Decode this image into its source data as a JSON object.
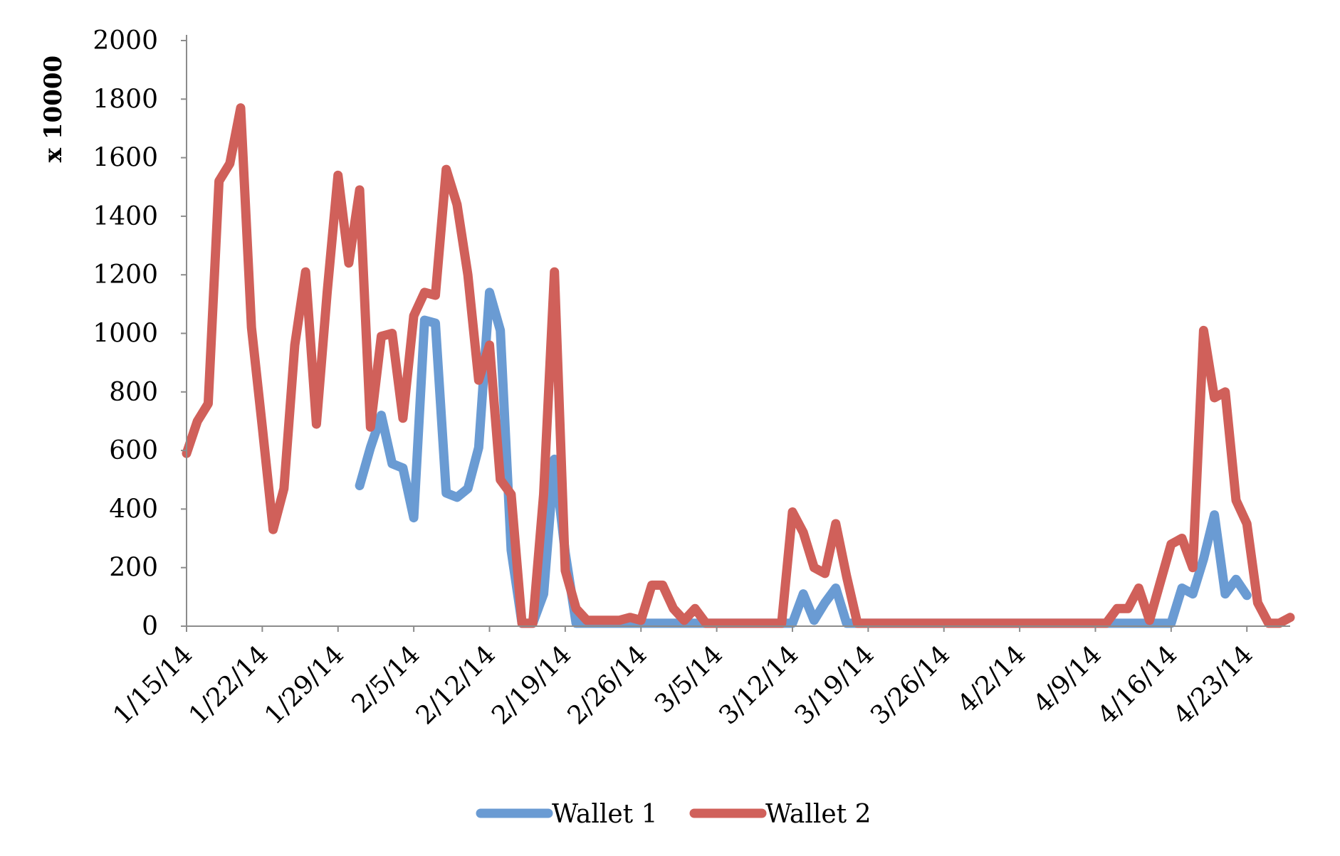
{
  "chart_data": {
    "type": "line",
    "ylabel": "x 10000",
    "ylim": [
      0,
      2000
    ],
    "yticks": [
      "0",
      "200",
      "400",
      "600",
      "800",
      "1000",
      "1200",
      "1400",
      "1600",
      "1800",
      "2000"
    ],
    "xlim": [
      "2014-01-15",
      "2014-04-27"
    ],
    "xticks": [
      "1/15/14",
      "1/22/14",
      "1/29/14",
      "2/5/14",
      "2/12/14",
      "2/19/14",
      "2/26/14",
      "3/5/14",
      "3/12/14",
      "3/19/14",
      "3/26/14",
      "4/2/14",
      "4/9/14",
      "4/16/14",
      "4/23/14"
    ],
    "grid": false,
    "legend_position": "bottom",
    "colors": {
      "wallet1": "#6a9bd3",
      "wallet2": "#d0605a"
    },
    "series": [
      {
        "name": "Wallet 1",
        "color": "#6a9bd3",
        "points": [
          [
            "2014-01-31",
            480
          ],
          [
            "2014-02-01",
            610
          ],
          [
            "2014-02-02",
            720
          ],
          [
            "2014-02-03",
            555
          ],
          [
            "2014-02-04",
            540
          ],
          [
            "2014-02-05",
            370
          ],
          [
            "2014-02-06",
            1045
          ],
          [
            "2014-02-07",
            1035
          ],
          [
            "2014-02-08",
            455
          ],
          [
            "2014-02-09",
            440
          ],
          [
            "2014-02-10",
            470
          ],
          [
            "2014-02-11",
            610
          ],
          [
            "2014-02-12",
            1140
          ],
          [
            "2014-02-13",
            1010
          ],
          [
            "2014-02-14",
            260
          ],
          [
            "2014-02-15",
            10
          ],
          [
            "2014-02-16",
            10
          ],
          [
            "2014-02-17",
            110
          ],
          [
            "2014-02-18",
            570
          ],
          [
            "2014-02-19",
            250
          ],
          [
            "2014-02-20",
            10
          ],
          [
            "2014-02-21",
            10
          ],
          [
            "2014-02-22",
            10
          ],
          [
            "2014-02-23",
            10
          ],
          [
            "2014-02-24",
            10
          ],
          [
            "2014-02-25",
            10
          ],
          [
            "2014-02-26",
            10
          ],
          [
            "2014-02-27",
            10
          ],
          [
            "2014-02-28",
            10
          ],
          [
            "2014-03-01",
            10
          ],
          [
            "2014-03-02",
            10
          ],
          [
            "2014-03-03",
            10
          ],
          [
            "2014-03-04",
            10
          ],
          [
            "2014-03-05",
            10
          ],
          [
            "2014-03-06",
            10
          ],
          [
            "2014-03-07",
            10
          ],
          [
            "2014-03-08",
            10
          ],
          [
            "2014-03-09",
            10
          ],
          [
            "2014-03-10",
            10
          ],
          [
            "2014-03-11",
            10
          ],
          [
            "2014-03-12",
            10
          ],
          [
            "2014-03-13",
            110
          ],
          [
            "2014-03-14",
            20
          ],
          [
            "2014-03-15",
            80
          ],
          [
            "2014-03-16",
            130
          ],
          [
            "2014-03-17",
            10
          ],
          [
            "2014-03-18",
            10
          ],
          [
            "2014-03-20",
            10
          ],
          [
            "2014-03-25",
            10
          ],
          [
            "2014-03-30",
            10
          ],
          [
            "2014-04-04",
            10
          ],
          [
            "2014-04-09",
            10
          ],
          [
            "2014-04-10",
            10
          ],
          [
            "2014-04-11",
            10
          ],
          [
            "2014-04-12",
            10
          ],
          [
            "2014-04-13",
            10
          ],
          [
            "2014-04-14",
            10
          ],
          [
            "2014-04-15",
            10
          ],
          [
            "2014-04-16",
            10
          ],
          [
            "2014-04-17",
            130
          ],
          [
            "2014-04-18",
            110
          ],
          [
            "2014-04-19",
            230
          ],
          [
            "2014-04-20",
            380
          ],
          [
            "2014-04-21",
            110
          ],
          [
            "2014-04-22",
            160
          ],
          [
            "2014-04-23",
            105
          ]
        ]
      },
      {
        "name": "Wallet 2",
        "color": "#d0605a",
        "points": [
          [
            "2014-01-15",
            590
          ],
          [
            "2014-01-16",
            700
          ],
          [
            "2014-01-17",
            760
          ],
          [
            "2014-01-18",
            1520
          ],
          [
            "2014-01-19",
            1580
          ],
          [
            "2014-01-20",
            1770
          ],
          [
            "2014-01-21",
            1020
          ],
          [
            "2014-01-22",
            680
          ],
          [
            "2014-01-23",
            330
          ],
          [
            "2014-01-24",
            470
          ],
          [
            "2014-01-25",
            960
          ],
          [
            "2014-01-26",
            1210
          ],
          [
            "2014-01-27",
            690
          ],
          [
            "2014-01-28",
            1140
          ],
          [
            "2014-01-29",
            1540
          ],
          [
            "2014-01-30",
            1240
          ],
          [
            "2014-01-31",
            1490
          ],
          [
            "2014-02-01",
            680
          ],
          [
            "2014-02-02",
            990
          ],
          [
            "2014-02-03",
            1000
          ],
          [
            "2014-02-04",
            710
          ],
          [
            "2014-02-05",
            1060
          ],
          [
            "2014-02-06",
            1140
          ],
          [
            "2014-02-07",
            1130
          ],
          [
            "2014-02-08",
            1560
          ],
          [
            "2014-02-09",
            1440
          ],
          [
            "2014-02-10",
            1200
          ],
          [
            "2014-02-11",
            840
          ],
          [
            "2014-02-12",
            960
          ],
          [
            "2014-02-13",
            500
          ],
          [
            "2014-02-14",
            450
          ],
          [
            "2014-02-15",
            10
          ],
          [
            "2014-02-16",
            10
          ],
          [
            "2014-02-17",
            450
          ],
          [
            "2014-02-18",
            1210
          ],
          [
            "2014-02-19",
            190
          ],
          [
            "2014-02-20",
            60
          ],
          [
            "2014-02-21",
            20
          ],
          [
            "2014-02-22",
            20
          ],
          [
            "2014-02-23",
            20
          ],
          [
            "2014-02-24",
            20
          ],
          [
            "2014-02-25",
            30
          ],
          [
            "2014-02-26",
            20
          ],
          [
            "2014-02-27",
            140
          ],
          [
            "2014-02-28",
            140
          ],
          [
            "2014-03-01",
            60
          ],
          [
            "2014-03-02",
            20
          ],
          [
            "2014-03-03",
            60
          ],
          [
            "2014-03-04",
            10
          ],
          [
            "2014-03-05",
            10
          ],
          [
            "2014-03-06",
            10
          ],
          [
            "2014-03-07",
            10
          ],
          [
            "2014-03-08",
            10
          ],
          [
            "2014-03-09",
            10
          ],
          [
            "2014-03-10",
            10
          ],
          [
            "2014-03-11",
            10
          ],
          [
            "2014-03-12",
            390
          ],
          [
            "2014-03-13",
            320
          ],
          [
            "2014-03-14",
            200
          ],
          [
            "2014-03-15",
            180
          ],
          [
            "2014-03-16",
            350
          ],
          [
            "2014-03-17",
            170
          ],
          [
            "2014-03-18",
            10
          ],
          [
            "2014-03-20",
            10
          ],
          [
            "2014-03-25",
            10
          ],
          [
            "2014-03-30",
            10
          ],
          [
            "2014-04-04",
            10
          ],
          [
            "2014-04-09",
            10
          ],
          [
            "2014-04-10",
            10
          ],
          [
            "2014-04-11",
            60
          ],
          [
            "2014-04-12",
            60
          ],
          [
            "2014-04-13",
            130
          ],
          [
            "2014-04-14",
            20
          ],
          [
            "2014-04-15",
            150
          ],
          [
            "2014-04-16",
            280
          ],
          [
            "2014-04-17",
            300
          ],
          [
            "2014-04-18",
            200
          ],
          [
            "2014-04-19",
            1010
          ],
          [
            "2014-04-20",
            780
          ],
          [
            "2014-04-21",
            800
          ],
          [
            "2014-04-22",
            430
          ],
          [
            "2014-04-23",
            350
          ],
          [
            "2014-04-24",
            80
          ],
          [
            "2014-04-25",
            10
          ],
          [
            "2014-04-26",
            10
          ],
          [
            "2014-04-27",
            30
          ]
        ]
      }
    ]
  }
}
